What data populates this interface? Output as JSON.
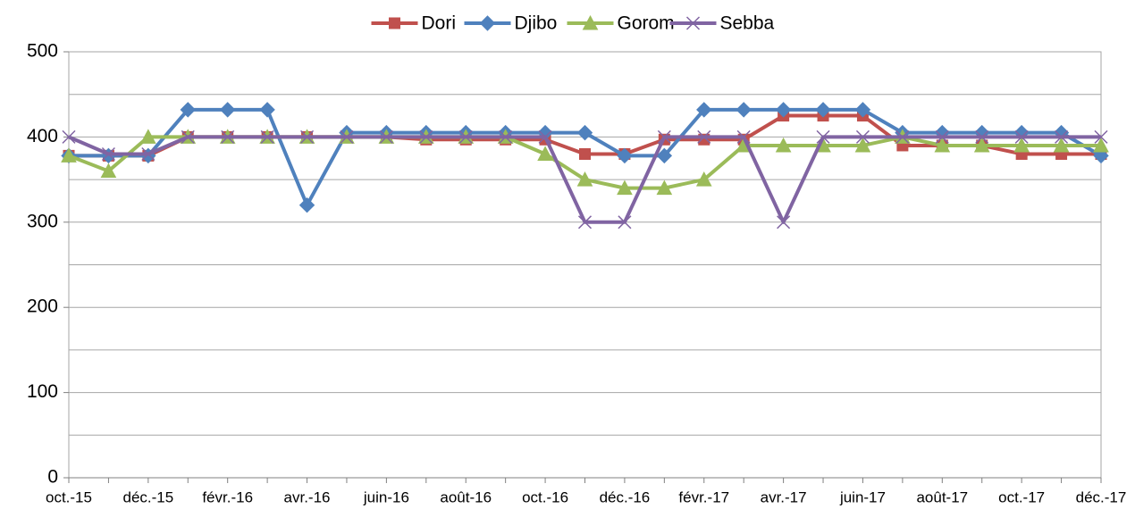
{
  "chart_data": {
    "type": "line",
    "categories": [
      "oct.-15",
      null,
      "déc.-15",
      null,
      "févr.-16",
      null,
      "avr.-16",
      null,
      "juin-16",
      null,
      "août-16",
      null,
      "oct.-16",
      null,
      "déc.-16",
      null,
      "févr.-17",
      null,
      "avr.-17",
      null,
      "juin-17",
      null,
      "août-17",
      null,
      "oct.-17",
      null,
      "déc.-17"
    ],
    "series": [
      {
        "name": "Dori",
        "color": "#c0504d",
        "marker": "square",
        "values": [
          378,
          378,
          378,
          400,
          400,
          400,
          400,
          400,
          400,
          397,
          397,
          397,
          397,
          380,
          380,
          397,
          397,
          397,
          425,
          425,
          425,
          390,
          390,
          390,
          380,
          380,
          380
        ]
      },
      {
        "name": "Djibo",
        "color": "#4f81bd",
        "marker": "diamond",
        "values": [
          378,
          378,
          378,
          432,
          432,
          432,
          320,
          405,
          405,
          405,
          405,
          405,
          405,
          405,
          378,
          378,
          432,
          432,
          432,
          432,
          432,
          405,
          405,
          405,
          405,
          405,
          378
        ]
      },
      {
        "name": "Gorom",
        "color": "#9bbb59",
        "marker": "triangle",
        "values": [
          378,
          360,
          400,
          400,
          400,
          400,
          400,
          400,
          400,
          400,
          400,
          400,
          380,
          350,
          340,
          340,
          350,
          390,
          390,
          390,
          390,
          400,
          390,
          390,
          390,
          390,
          390
        ]
      },
      {
        "name": "Sebba",
        "color": "#8064a2",
        "marker": "x",
        "values": [
          400,
          380,
          380,
          400,
          400,
          400,
          400,
          400,
          400,
          400,
          400,
          400,
          400,
          300,
          300,
          400,
          400,
          400,
          300,
          400,
          400,
          400,
          400,
          400,
          400,
          400,
          400
        ]
      }
    ],
    "ylim": [
      0,
      500
    ],
    "yticks": [
      0,
      100,
      200,
      300,
      400,
      500
    ],
    "y_minor_ticks": [
      50,
      150,
      250,
      350,
      450
    ],
    "grid": true,
    "legend": "top"
  }
}
